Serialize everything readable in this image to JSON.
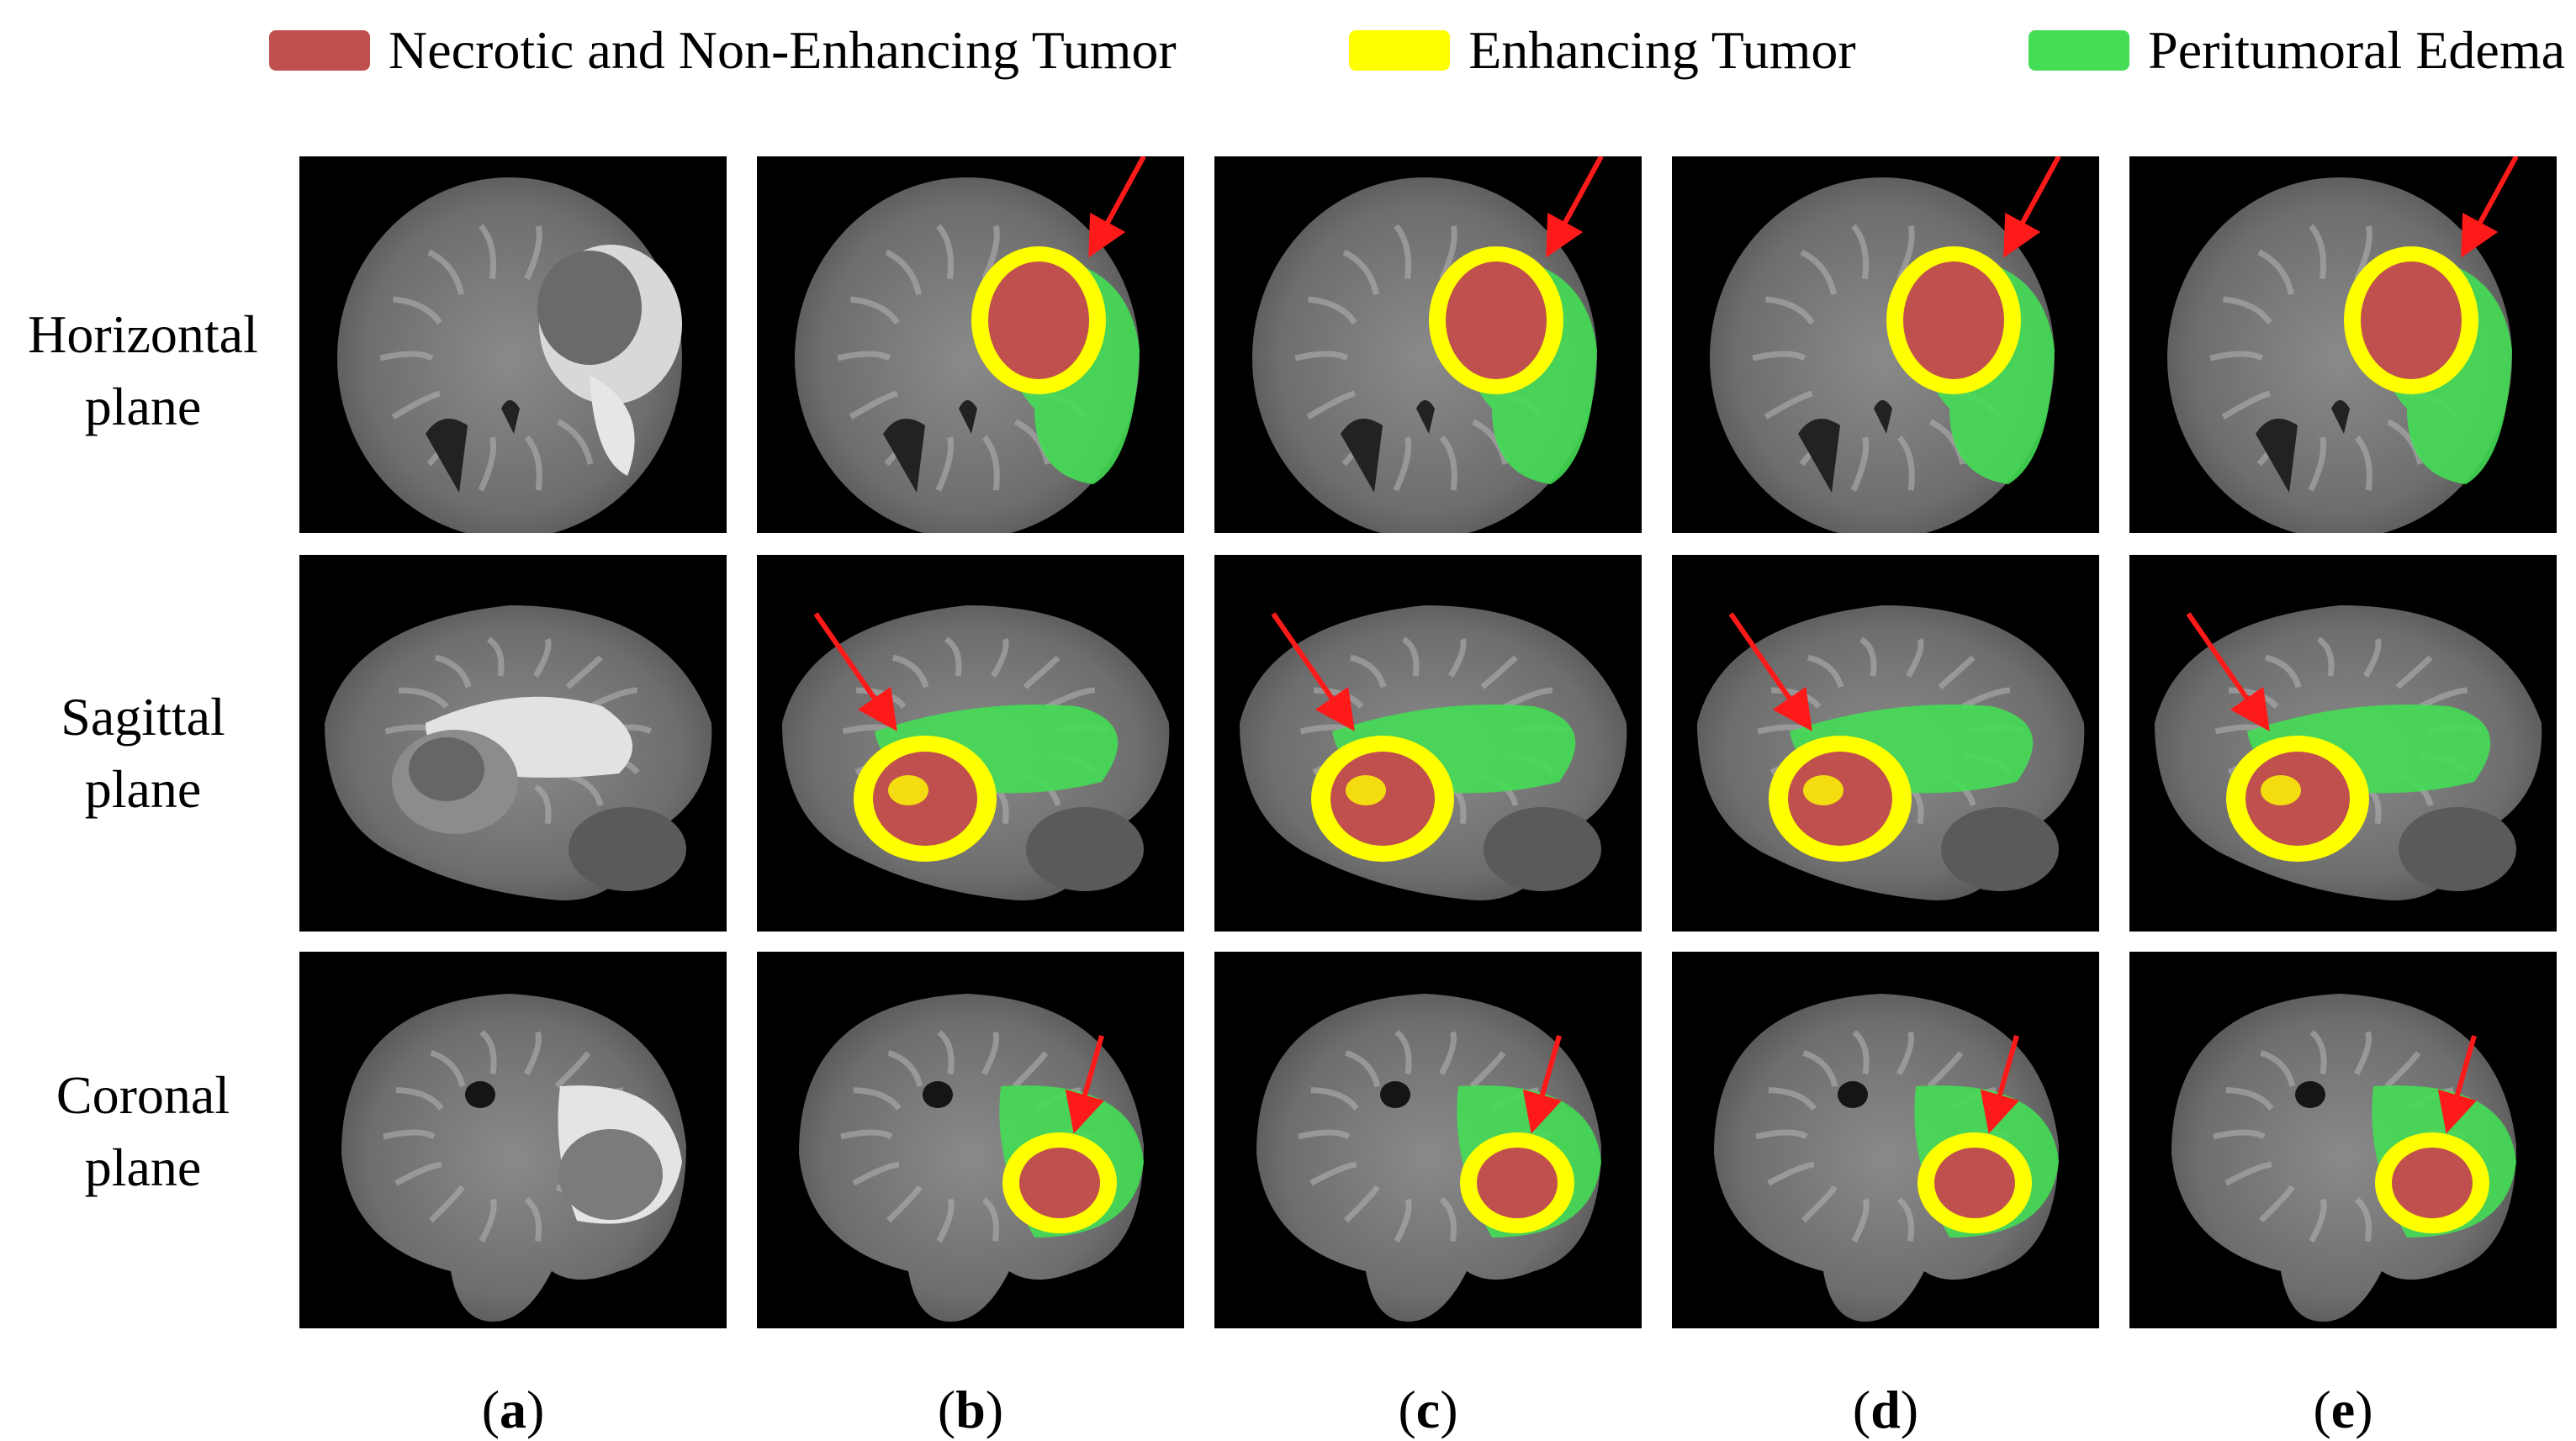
{
  "legend": [
    {
      "label": "Necrotic and Non-Enhancing Tumor",
      "color": "#c0504d"
    },
    {
      "label": "Enhancing Tumor",
      "color": "#ffff00"
    },
    {
      "label": "Peritumoral Edema",
      "color": "#44dd55"
    }
  ],
  "rows": [
    {
      "line1": "Horizontal",
      "line2": "plane"
    },
    {
      "line1": "Sagittal",
      "line2": "plane"
    },
    {
      "line1": "Coronal",
      "line2": "plane"
    }
  ],
  "columns": [
    {
      "letter": "a"
    },
    {
      "letter": "b"
    },
    {
      "letter": "c"
    },
    {
      "letter": "d"
    },
    {
      "letter": "e"
    }
  ],
  "colors": {
    "necrotic": "#c0504d",
    "enhancing": "#ffff00",
    "edema": "#44dd55",
    "arrow": "#ff1a1a"
  }
}
